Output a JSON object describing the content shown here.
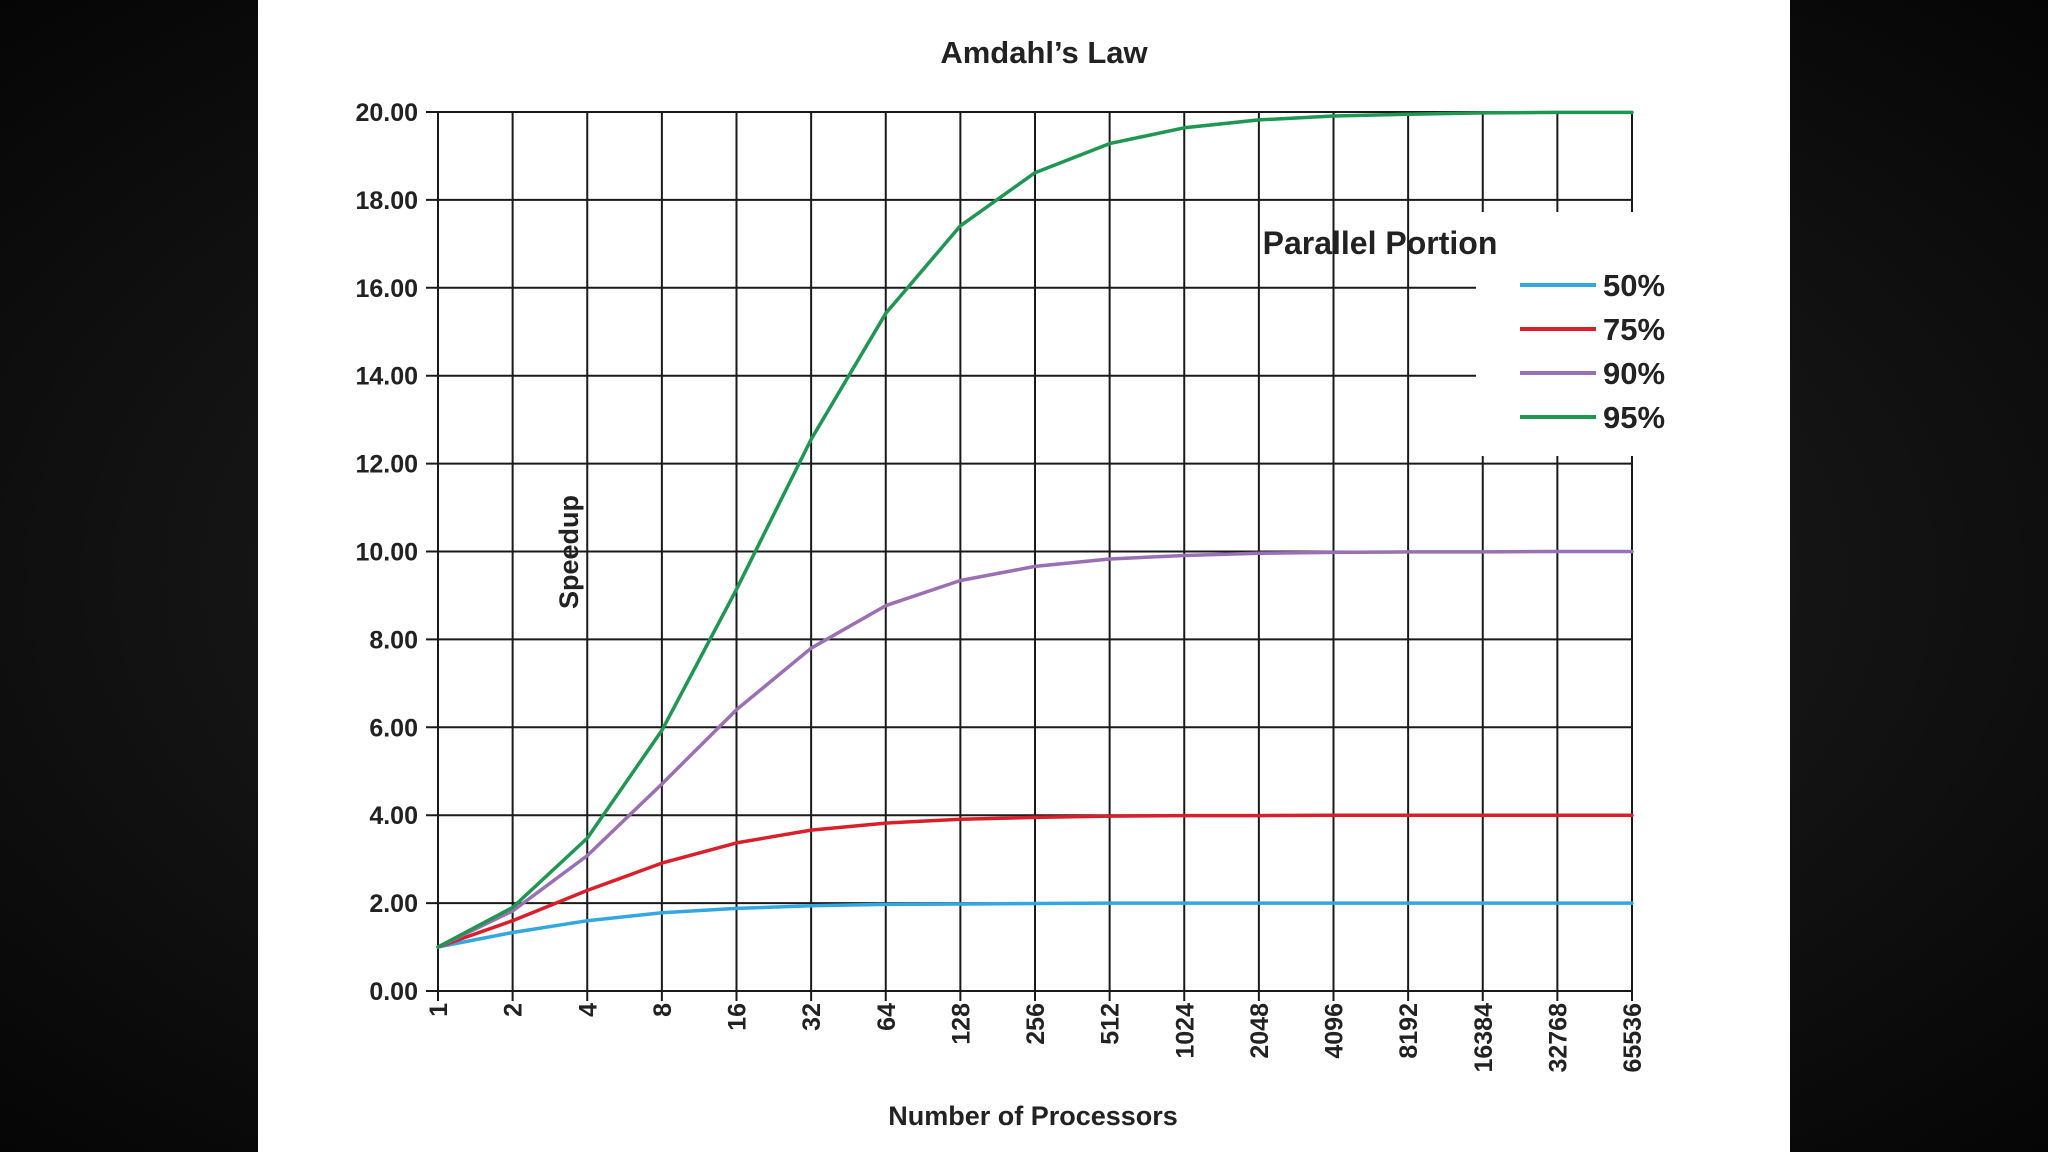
{
  "chart_data": {
    "type": "line",
    "title": "Amdahl’s Law",
    "xlabel": "Number of Processors",
    "ylabel": "Speedup",
    "x_scale": "log2",
    "x": [
      1,
      2,
      4,
      8,
      16,
      32,
      64,
      128,
      256,
      512,
      1024,
      2048,
      4096,
      8192,
      16384,
      32768,
      65536
    ],
    "x_tick_labels": [
      "1",
      "2",
      "4",
      "8",
      "16",
      "32",
      "64",
      "128",
      "256",
      "512",
      "1024",
      "2048",
      "4096",
      "8192",
      "16384",
      "32768",
      "65536"
    ],
    "y_ticks": [
      0,
      2,
      4,
      6,
      8,
      10,
      12,
      14,
      16,
      18,
      20
    ],
    "y_tick_labels": [
      "0.00",
      "2.00",
      "4.00",
      "6.00",
      "8.00",
      "10.00",
      "12.00",
      "14.00",
      "16.00",
      "18.00",
      "20.00"
    ],
    "ylim": [
      0,
      20
    ],
    "grid": true,
    "legend": {
      "title": "Parallel Portion",
      "placement": "top-right"
    },
    "series": [
      {
        "name": "50%",
        "color": "#33a8e0",
        "values": [
          1.0,
          1.33,
          1.6,
          1.78,
          1.88,
          1.94,
          1.97,
          1.98,
          1.99,
          2.0,
          2.0,
          2.0,
          2.0,
          2.0,
          2.0,
          2.0,
          2.0
        ]
      },
      {
        "name": "75%",
        "color": "#d9202a",
        "values": [
          1.0,
          1.6,
          2.29,
          2.91,
          3.37,
          3.66,
          3.82,
          3.91,
          3.95,
          3.98,
          3.99,
          3.99,
          4.0,
          4.0,
          4.0,
          4.0,
          4.0
        ]
      },
      {
        "name": "90%",
        "color": "#9a6fb4",
        "values": [
          1.0,
          1.82,
          3.08,
          4.71,
          6.4,
          7.8,
          8.77,
          9.34,
          9.66,
          9.83,
          9.91,
          9.96,
          9.98,
          9.99,
          9.99,
          10.0,
          10.0
        ]
      },
      {
        "name": "95%",
        "color": "#1f9651",
        "values": [
          1.0,
          1.9,
          3.48,
          5.93,
          9.14,
          12.55,
          15.42,
          17.41,
          18.62,
          19.28,
          19.64,
          19.82,
          19.91,
          19.95,
          19.98,
          19.99,
          19.99
        ]
      }
    ]
  }
}
